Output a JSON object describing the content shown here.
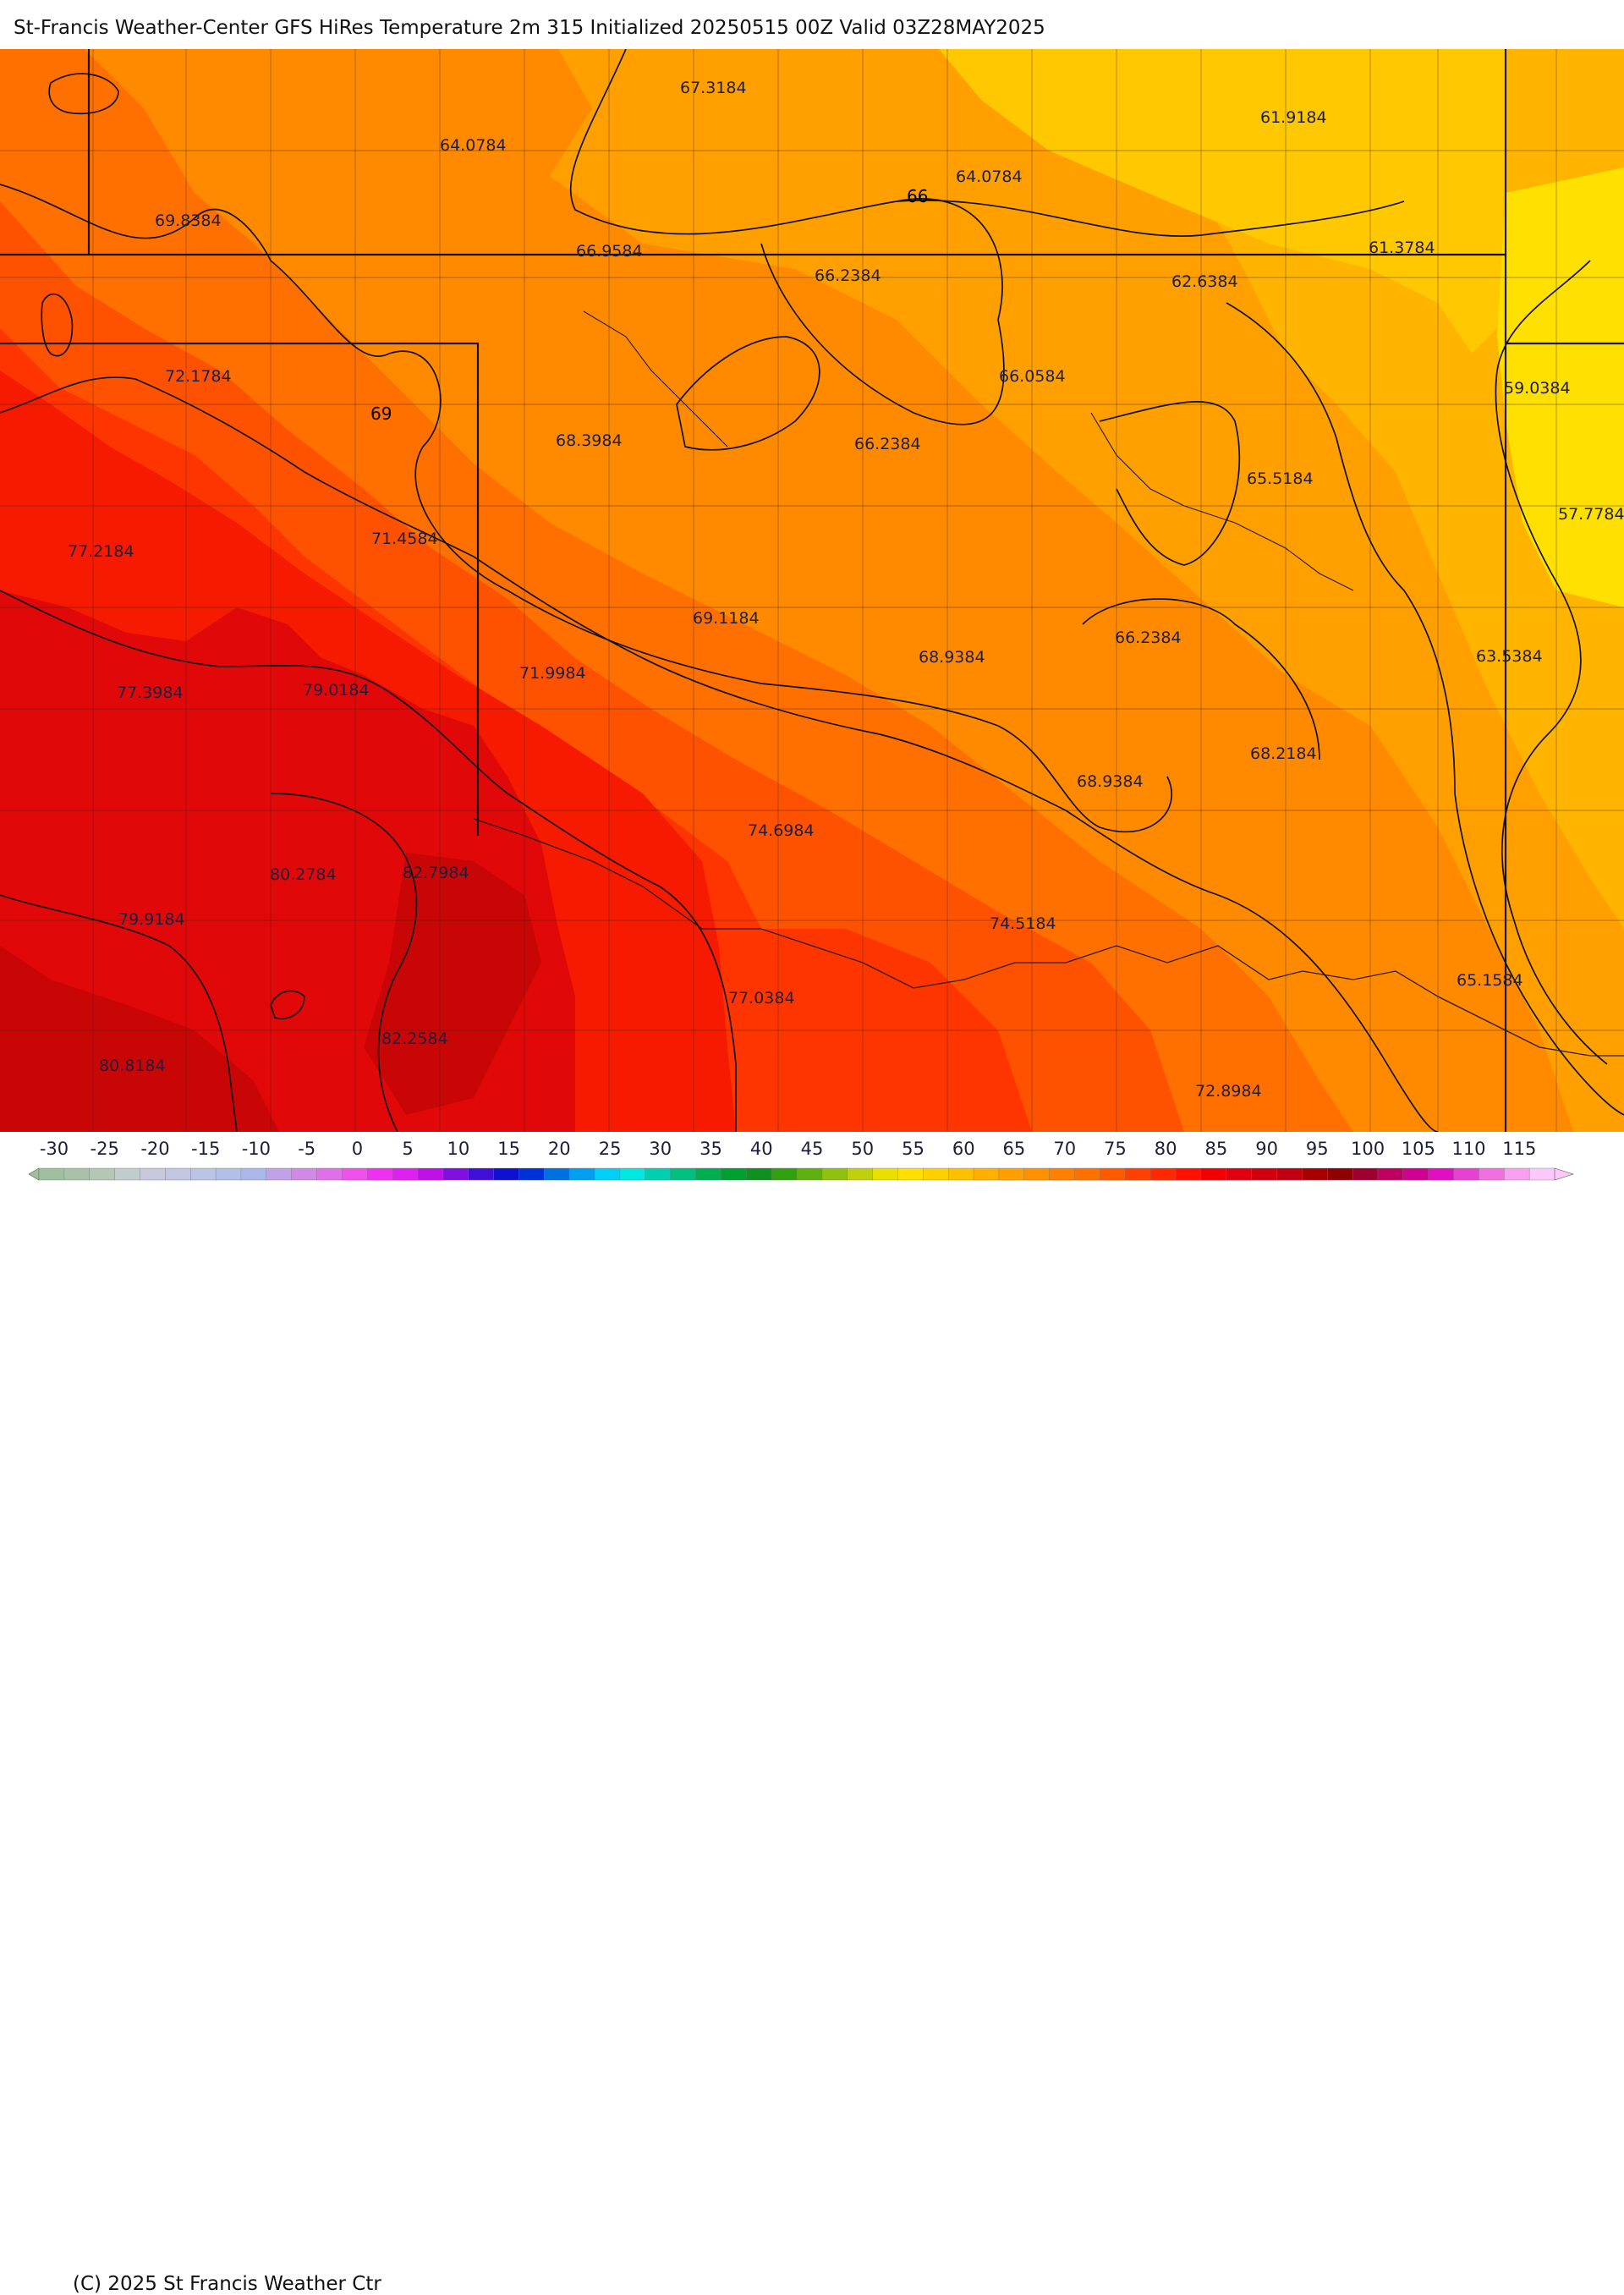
{
  "header": {
    "title": "St-Francis Weather-Center GFS HiRes Temperature 2m  315 Initialized 20250515 00Z Valid 03Z28MAY2025"
  },
  "map": {
    "contour_line_labels": [
      "66",
      "69"
    ],
    "value_labels": [
      "67.3184",
      "64.0784",
      "61.9184",
      "64.0784",
      "69.8384",
      "66.9584",
      "66.2384",
      "61.3784",
      "62.6384",
      "72.1784",
      "66.0584",
      "59.0384",
      "68.3984",
      "66.2384",
      "65.5184",
      "57.7784",
      "77.2184",
      "71.4584",
      "69.1184",
      "68.9384",
      "66.2384",
      "63.5384",
      "71.9984",
      "77.3984",
      "79.0184",
      "68.2184",
      "68.9384",
      "74.6984",
      "80.2784",
      "82.7984",
      "74.5184",
      "79.9184",
      "65.1584",
      "77.0384",
      "82.2584",
      "80.8184",
      "72.8984"
    ],
    "palette_note": "filled temperature bands",
    "band_colors": {
      "b57": "#ffe000",
      "b60": "#ffc800",
      "b63": "#ffb400",
      "b66": "#ffa000",
      "b69": "#ff8a00",
      "b72": "#ff7000",
      "b75": "#ff5200",
      "b78": "#ff3500",
      "b81": "#f51a00",
      "b84": "#e00808",
      "b87": "#c80606"
    }
  },
  "legend": {
    "ticks": [
      "-30",
      "-25",
      "-20",
      "-15",
      "-10",
      "-5",
      "0",
      "5",
      "10",
      "15",
      "20",
      "25",
      "30",
      "35",
      "40",
      "45",
      "50",
      "55",
      "60",
      "65",
      "70",
      "75",
      "80",
      "85",
      "90",
      "95",
      "100",
      "105",
      "110",
      "115"
    ],
    "colors": [
      "#9fbf9f",
      "#a9c1a9",
      "#b4c7b4",
      "#c1cccc",
      "#c9c9dc",
      "#c2c6e0",
      "#bac4e4",
      "#b3c0e6",
      "#a9b8e8",
      "#c1a1e8",
      "#d08ae6",
      "#e070e8",
      "#ee50ea",
      "#f030f0",
      "#e020f0",
      "#c010e8",
      "#8010e0",
      "#4010d8",
      "#1010d0",
      "#0030d8",
      "#0070e0",
      "#00a0f0",
      "#00d0f8",
      "#00e8e0",
      "#00d0b0",
      "#00c080",
      "#00b050",
      "#00a030",
      "#109020",
      "#30a010",
      "#60b010",
      "#90c010",
      "#c0d010",
      "#e8e000",
      "#ffe000",
      "#ffd000",
      "#ffc000",
      "#ffb000",
      "#ffa000",
      "#ff9000",
      "#ff8000",
      "#ff7000",
      "#ff5a00",
      "#ff4000",
      "#ff2800",
      "#ff1000",
      "#f00000",
      "#e00010",
      "#d00010",
      "#c00010",
      "#a80000",
      "#900000",
      "#a00030",
      "#c00060",
      "#d00090",
      "#e010c0",
      "#e840d0",
      "#f070e0",
      "#f8a0f0",
      "#fcc8fa"
    ],
    "copyright": "(C) 2025 St Francis Weather Ctr"
  }
}
